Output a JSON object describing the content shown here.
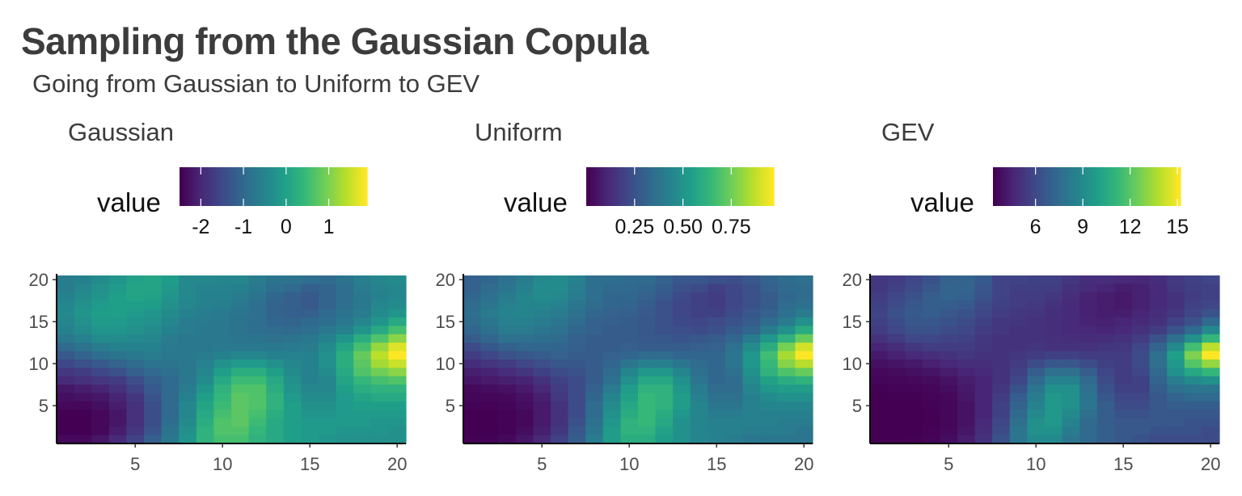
{
  "title": "Sampling from the Gaussian Copula",
  "subtitle": "Going from Gaussian to Uniform to GEV",
  "palette": [
    "#440154",
    "#482878",
    "#3e4989",
    "#31688e",
    "#26828e",
    "#1f9e89",
    "#35b779",
    "#6ece58",
    "#b5de2b",
    "#fde725"
  ],
  "panels": [
    {
      "title": "Gaussian",
      "legend_title": "value",
      "legend_ticks": [
        "-2",
        "-1",
        "0",
        "1"
      ],
      "legend_tick_values": [
        -2,
        -1,
        0,
        1
      ],
      "legend_range": [
        -2.5,
        1.9
      ]
    },
    {
      "title": "Uniform",
      "legend_title": "value",
      "legend_ticks": [
        "0.25",
        "0.50",
        "0.75"
      ],
      "legend_tick_values": [
        0.25,
        0.5,
        0.75
      ],
      "legend_range": [
        0.0,
        0.97
      ]
    },
    {
      "title": "GEV",
      "legend_title": "value",
      "legend_ticks": [
        "6",
        "9",
        "12",
        "15"
      ],
      "legend_tick_values": [
        6,
        9,
        12,
        15
      ],
      "legend_range": [
        3.3,
        15.2
      ]
    }
  ],
  "chart_data": {
    "type": "heatmap",
    "x_ticks": [
      "5",
      "10",
      "15",
      "20"
    ],
    "x_tick_values": [
      5,
      10,
      15,
      20
    ],
    "y_ticks": [
      "5",
      "10",
      "15",
      "20"
    ],
    "y_tick_values": [
      5,
      10,
      15,
      20
    ],
    "xlim": [
      0.5,
      20.5
    ],
    "ylim": [
      0.5,
      20.5
    ],
    "note": "Cell values are approximate, in normalized color units 0-1 read from the Gaussian panel; other panels are monotone transforms.",
    "matrix_rows_y20_to_y1": [
      [
        0.42,
        0.44,
        0.48,
        0.52,
        0.57,
        0.58,
        0.55,
        0.47,
        0.47,
        0.46,
        0.46,
        0.42,
        0.38,
        0.38,
        0.36,
        0.35,
        0.38,
        0.43,
        0.46,
        0.48
      ],
      [
        0.42,
        0.46,
        0.5,
        0.54,
        0.58,
        0.58,
        0.53,
        0.47,
        0.45,
        0.45,
        0.44,
        0.4,
        0.36,
        0.34,
        0.3,
        0.32,
        0.36,
        0.42,
        0.45,
        0.46
      ],
      [
        0.44,
        0.48,
        0.52,
        0.56,
        0.58,
        0.57,
        0.52,
        0.47,
        0.44,
        0.44,
        0.42,
        0.38,
        0.33,
        0.3,
        0.28,
        0.32,
        0.36,
        0.4,
        0.44,
        0.46
      ],
      [
        0.46,
        0.5,
        0.54,
        0.56,
        0.56,
        0.55,
        0.5,
        0.46,
        0.44,
        0.43,
        0.4,
        0.36,
        0.32,
        0.3,
        0.28,
        0.32,
        0.36,
        0.4,
        0.46,
        0.48
      ],
      [
        0.47,
        0.52,
        0.55,
        0.56,
        0.54,
        0.52,
        0.48,
        0.44,
        0.42,
        0.41,
        0.39,
        0.36,
        0.32,
        0.3,
        0.3,
        0.34,
        0.38,
        0.42,
        0.48,
        0.52
      ],
      [
        0.46,
        0.5,
        0.54,
        0.54,
        0.52,
        0.5,
        0.46,
        0.42,
        0.41,
        0.4,
        0.38,
        0.36,
        0.33,
        0.32,
        0.34,
        0.36,
        0.4,
        0.46,
        0.52,
        0.6
      ],
      [
        0.44,
        0.48,
        0.52,
        0.52,
        0.5,
        0.48,
        0.44,
        0.42,
        0.4,
        0.4,
        0.38,
        0.36,
        0.35,
        0.34,
        0.36,
        0.4,
        0.44,
        0.52,
        0.6,
        0.7
      ],
      [
        0.4,
        0.44,
        0.48,
        0.48,
        0.47,
        0.46,
        0.42,
        0.4,
        0.4,
        0.4,
        0.39,
        0.38,
        0.37,
        0.38,
        0.4,
        0.44,
        0.52,
        0.62,
        0.72,
        0.82
      ],
      [
        0.34,
        0.38,
        0.42,
        0.44,
        0.44,
        0.44,
        0.41,
        0.4,
        0.4,
        0.41,
        0.4,
        0.4,
        0.4,
        0.41,
        0.42,
        0.48,
        0.58,
        0.7,
        0.84,
        0.95
      ],
      [
        0.28,
        0.32,
        0.36,
        0.38,
        0.4,
        0.42,
        0.4,
        0.4,
        0.42,
        0.44,
        0.46,
        0.46,
        0.44,
        0.44,
        0.44,
        0.5,
        0.62,
        0.76,
        0.9,
        1.0
      ],
      [
        0.22,
        0.25,
        0.28,
        0.32,
        0.35,
        0.38,
        0.38,
        0.4,
        0.44,
        0.5,
        0.54,
        0.54,
        0.5,
        0.46,
        0.44,
        0.5,
        0.62,
        0.74,
        0.86,
        0.92
      ],
      [
        0.16,
        0.18,
        0.22,
        0.25,
        0.3,
        0.34,
        0.36,
        0.4,
        0.46,
        0.56,
        0.62,
        0.62,
        0.56,
        0.48,
        0.44,
        0.48,
        0.6,
        0.72,
        0.78,
        0.82
      ],
      [
        0.12,
        0.14,
        0.16,
        0.18,
        0.24,
        0.3,
        0.34,
        0.4,
        0.48,
        0.6,
        0.68,
        0.68,
        0.6,
        0.5,
        0.44,
        0.46,
        0.58,
        0.66,
        0.7,
        0.72
      ],
      [
        0.06,
        0.08,
        0.1,
        0.14,
        0.2,
        0.28,
        0.34,
        0.42,
        0.52,
        0.64,
        0.72,
        0.72,
        0.62,
        0.52,
        0.46,
        0.46,
        0.56,
        0.62,
        0.64,
        0.64
      ],
      [
        0.04,
        0.05,
        0.06,
        0.1,
        0.16,
        0.26,
        0.34,
        0.44,
        0.56,
        0.66,
        0.74,
        0.72,
        0.64,
        0.54,
        0.48,
        0.48,
        0.54,
        0.58,
        0.6,
        0.6
      ],
      [
        0.02,
        0.02,
        0.04,
        0.08,
        0.14,
        0.24,
        0.34,
        0.46,
        0.58,
        0.68,
        0.74,
        0.72,
        0.64,
        0.56,
        0.5,
        0.5,
        0.54,
        0.56,
        0.56,
        0.56
      ],
      [
        0.0,
        0.0,
        0.02,
        0.06,
        0.14,
        0.24,
        0.34,
        0.46,
        0.6,
        0.7,
        0.74,
        0.7,
        0.62,
        0.56,
        0.52,
        0.52,
        0.54,
        0.54,
        0.54,
        0.54
      ],
      [
        0.0,
        0.0,
        0.02,
        0.06,
        0.14,
        0.24,
        0.36,
        0.48,
        0.62,
        0.72,
        0.74,
        0.68,
        0.6,
        0.56,
        0.54,
        0.54,
        0.54,
        0.54,
        0.52,
        0.52
      ],
      [
        0.0,
        0.0,
        0.02,
        0.08,
        0.16,
        0.26,
        0.38,
        0.5,
        0.64,
        0.72,
        0.72,
        0.66,
        0.6,
        0.56,
        0.54,
        0.54,
        0.52,
        0.52,
        0.52,
        0.5
      ],
      [
        0.02,
        0.02,
        0.06,
        0.12,
        0.2,
        0.3,
        0.4,
        0.52,
        0.64,
        0.7,
        0.7,
        0.64,
        0.6,
        0.56,
        0.54,
        0.52,
        0.5,
        0.5,
        0.5,
        0.5
      ]
    ],
    "panel_transforms_gamma": [
      1.0,
      1.35,
      2.1
    ]
  }
}
